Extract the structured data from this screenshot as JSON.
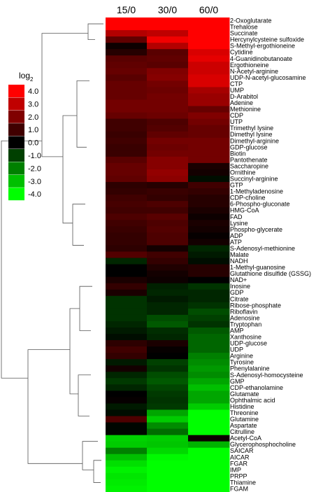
{
  "chart_data": {
    "type": "heatmap",
    "columns": [
      "15/0",
      "30/0",
      "60/0"
    ],
    "rows": [
      "2-Oxoglutarate",
      "Trehalose",
      "Succinate",
      "Hercynylcysteine sulfoxide",
      "S-Methyl-ergothioneine",
      "Cytidine",
      "4-Guanidinobutanoate",
      "Ergothioneine",
      "N-Acetyl-arginine",
      "UDP-N-acetyl-glucosamine",
      "CTP",
      "UMP",
      "D-Arabitol",
      "Adenine",
      "Methionine",
      "CDP",
      "UTP",
      "Trimethyl lysine",
      "Dimethyl lysine",
      "Dimethyl-arginine",
      "GDP-glucose",
      "Biotin",
      "Pantothenate",
      "Saccharopine",
      "Ornithine",
      "Succinyl-arginine",
      "GTP",
      "1-Methyladenosine",
      "CDP-choline",
      "6-Phospho-gluconate",
      "HMG-CoA",
      "FAD",
      "Lysine",
      "Phospho-glycerate",
      "ADP",
      "ATP",
      "S-Adenosyl-methionine",
      "Malate",
      "NADH",
      "1-Methyl-guanosine",
      "Glutathione disulfide (GSSG)",
      "NAD+",
      "Inosine",
      "GDP",
      "Citrate",
      "Ribose-phosphate",
      "Riboflavin",
      "Adenosine",
      "Tryptophan",
      "AMP",
      "Xanthosine",
      "UDP-glucose",
      "UDP",
      "Arginine",
      "Tyrosine",
      "Phenylalanine",
      "S-Adenosyl-homocysteine",
      "GMP",
      "CDP-ethanolamine",
      "Glutamate",
      "Ophthalmic acid",
      "Histidine",
      "Threonine",
      "Glutamine",
      "Aspartate",
      "Citrulline",
      "Acetyl-CoA",
      "Glycerophosphocholine",
      "SAICAR",
      "AICAR",
      "FGAR",
      "IMP",
      "PRPP",
      "Thiamine",
      "FGAM"
    ],
    "values": [
      [
        4.0,
        4.0,
        4.0
      ],
      [
        4.0,
        4.0,
        4.0
      ],
      [
        2.8,
        3.0,
        4.0
      ],
      [
        1.5,
        3.8,
        4.0
      ],
      [
        0.2,
        2.8,
        4.0
      ],
      [
        0.6,
        1.4,
        3.4
      ],
      [
        1.4,
        1.5,
        3.6
      ],
      [
        1.5,
        1.4,
        3.2
      ],
      [
        1.6,
        2.0,
        3.2
      ],
      [
        1.4,
        2.1,
        3.4
      ],
      [
        1.6,
        1.8,
        3.4
      ],
      [
        1.6,
        1.7,
        2.6
      ],
      [
        1.6,
        1.8,
        2.4
      ],
      [
        1.8,
        1.8,
        2.4
      ],
      [
        1.8,
        1.8,
        1.6
      ],
      [
        1.6,
        1.7,
        2.0
      ],
      [
        1.0,
        1.2,
        1.8
      ],
      [
        1.0,
        1.3,
        1.6
      ],
      [
        0.9,
        1.5,
        1.6
      ],
      [
        1.0,
        1.8,
        1.8
      ],
      [
        0.9,
        1.7,
        1.8
      ],
      [
        0.9,
        1.8,
        1.8
      ],
      [
        1.4,
        2.1,
        1.8
      ],
      [
        1.6,
        2.1,
        0.4
      ],
      [
        1.6,
        2.3,
        0.3
      ],
      [
        1.5,
        2.2,
        -0.2
      ],
      [
        0.7,
        0.6,
        1.0
      ],
      [
        0.8,
        0.9,
        0.8
      ],
      [
        1.0,
        0.8,
        0.6
      ],
      [
        1.1,
        1.2,
        0.6
      ],
      [
        1.0,
        1.0,
        0.4
      ],
      [
        1.2,
        1.4,
        0.2
      ],
      [
        1.0,
        1.2,
        0.4
      ],
      [
        0.9,
        1.3,
        0.3
      ],
      [
        0.8,
        1.2,
        0.1
      ],
      [
        0.8,
        1.2,
        0.3
      ],
      [
        0.7,
        0.3,
        -0.6
      ],
      [
        1.3,
        1.0,
        -0.4
      ],
      [
        -0.6,
        0.8,
        -0.2
      ],
      [
        0.0,
        0.5,
        0.6
      ],
      [
        0.0,
        0.3,
        0.6
      ],
      [
        0.4,
        0.2,
        0.0
      ],
      [
        0.8,
        -0.5,
        -0.8
      ],
      [
        0.4,
        -0.6,
        -0.6
      ],
      [
        -0.8,
        -0.4,
        -0.6
      ],
      [
        -0.8,
        -0.6,
        -0.8
      ],
      [
        -0.8,
        -0.6,
        -1.2
      ],
      [
        -0.8,
        -1.2,
        -1.0
      ],
      [
        -0.6,
        -1.4,
        -0.8
      ],
      [
        -0.4,
        -0.7,
        -1.4
      ],
      [
        -0.2,
        -0.6,
        -1.6
      ],
      [
        0.7,
        0.4,
        -1.6
      ],
      [
        1.0,
        0.1,
        -1.6
      ],
      [
        0.8,
        0.0,
        -2.0
      ],
      [
        -0.4,
        -1.0,
        -2.2
      ],
      [
        0.3,
        -0.8,
        -2.4
      ],
      [
        -0.6,
        -1.2,
        -2.2
      ],
      [
        -0.9,
        -1.4,
        -2.6
      ],
      [
        -0.6,
        -1.1,
        -3.0
      ],
      [
        0.0,
        -0.9,
        -2.6
      ],
      [
        0.1,
        -0.8,
        -2.6
      ],
      [
        -0.4,
        -0.9,
        -3.2
      ],
      [
        -0.2,
        -2.6,
        -4.0
      ],
      [
        1.2,
        -3.2,
        -4.0
      ],
      [
        -0.1,
        -2.2,
        -4.0
      ],
      [
        -0.1,
        -1.7,
        -4.0
      ],
      [
        -3.3,
        -3.2,
        0.2
      ],
      [
        -3.2,
        -3.1,
        -2.8
      ],
      [
        -2.0,
        -3.4,
        -4.0
      ],
      [
        -3.0,
        -3.9,
        -4.0
      ],
      [
        -3.5,
        -4.0,
        -4.0
      ],
      [
        -3.8,
        -4.0,
        -4.0
      ],
      [
        -3.6,
        -4.0,
        -4.0
      ],
      [
        -3.7,
        -4.0,
        -4.0
      ],
      [
        -3.8,
        -4.0,
        -4.0
      ]
    ],
    "legend": {
      "title_main": "log",
      "title_sub": "2",
      "ticks": [
        4.0,
        3.0,
        2.0,
        1.0,
        0.0,
        -1.0,
        -2.0,
        -3.0,
        -4.0
      ],
      "tick_labels": [
        "4.0",
        "3.0",
        "2.0",
        "1.0",
        "0.0",
        "-1.0",
        "-2.0",
        "-3.0",
        "-4.0"
      ],
      "colors": [
        "#ff0000",
        "#c00000",
        "#800000",
        "#400000",
        "#000000",
        "#004000",
        "#008000",
        "#00c000",
        "#00ff00"
      ]
    },
    "color_scale": {
      "min": -4.0,
      "max": 4.0,
      "positive": "#ff0000",
      "zero": "#000000",
      "negative": "#00ff00"
    }
  }
}
